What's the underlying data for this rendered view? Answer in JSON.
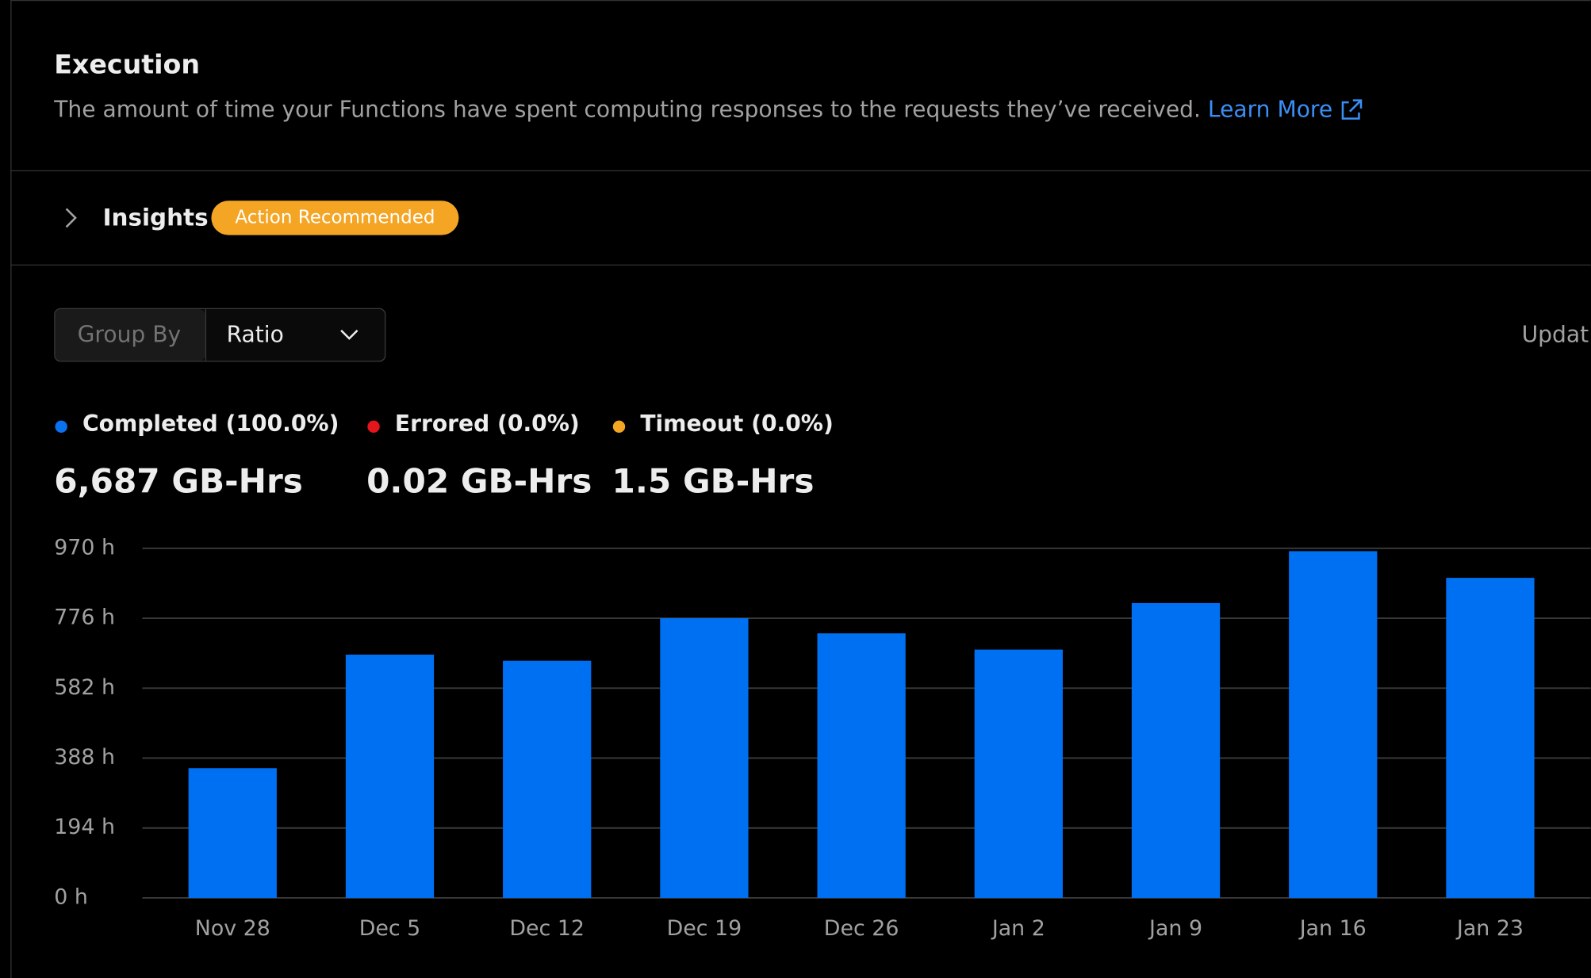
{
  "header": {
    "title": "Execution",
    "description": "The amount of time your Functions have spent computing responses to the requests they’ve received.",
    "link": "Learn More"
  },
  "insights": {
    "label": "Insights",
    "badge": "Action Recommended"
  },
  "controls": {
    "group_by_label": "Group By",
    "group_by_value": "Ratio",
    "updated": "Updat"
  },
  "summary": [
    {
      "label": "Completed (100.0%)",
      "color": "#0a72ef",
      "value": "6,687 GB-Hrs"
    },
    {
      "label": "Errored (0.0%)",
      "color": "#e5161b",
      "value": "0.02 GB-Hrs"
    },
    {
      "label": "Timeout (0.0%)",
      "color": "#f5a524",
      "value": "1.5 GB-Hrs"
    }
  ],
  "chart_data": {
    "type": "bar",
    "color": "#0070f3",
    "categories": [
      "Nov 28",
      "Dec 5",
      "Dec 12",
      "Dec 19",
      "Dec 26",
      "Jan 2",
      "Jan 9",
      "Jan 16",
      "Jan 23"
    ],
    "values": [
      360,
      675,
      658,
      776,
      734,
      689,
      818,
      962,
      888
    ],
    "ylim": [
      0,
      970
    ],
    "yticks": [
      {
        "value": 0,
        "label": "0 h"
      },
      {
        "value": 194,
        "label": "194 h"
      },
      {
        "value": 388,
        "label": "388 h"
      },
      {
        "value": 582,
        "label": "582 h"
      },
      {
        "value": 776,
        "label": "776 h"
      },
      {
        "value": 970,
        "label": "970 h"
      }
    ],
    "grid": true
  }
}
